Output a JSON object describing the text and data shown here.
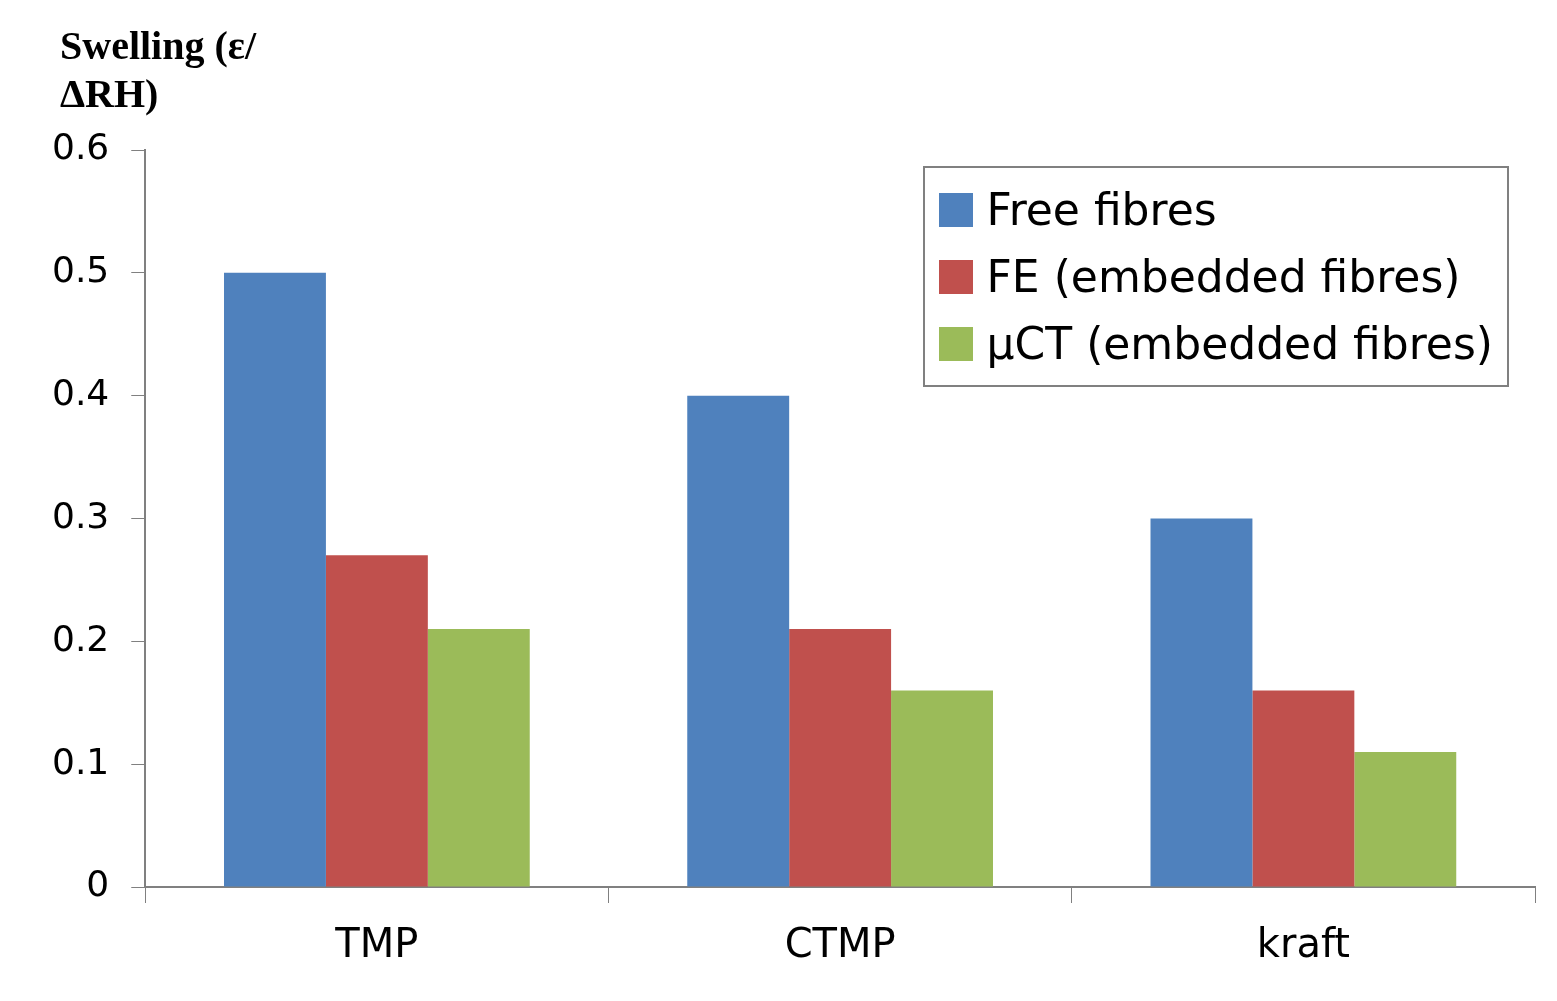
{
  "chart_data": {
    "type": "bar",
    "ylabel": "Swelling (ε/ΔRH)",
    "categories": [
      "TMP",
      "CTMP",
      "kraft"
    ],
    "series": [
      {
        "name": "Free fibres",
        "color": "#4f81bd",
        "values": [
          0.5,
          0.4,
          0.3
        ]
      },
      {
        "name": "FE (embedded fibres)",
        "color": "#c0504d",
        "values": [
          0.27,
          0.21,
          0.16
        ]
      },
      {
        "name": "µCT (embedded fibres)",
        "color": "#9bbb59",
        "values": [
          0.21,
          0.16,
          0.11
        ]
      }
    ],
    "ylim": [
      0,
      0.6
    ],
    "yticks": [
      0,
      0.1,
      0.2,
      0.3,
      0.4,
      0.5,
      0.6
    ],
    "grid": false,
    "legend": "top right"
  }
}
